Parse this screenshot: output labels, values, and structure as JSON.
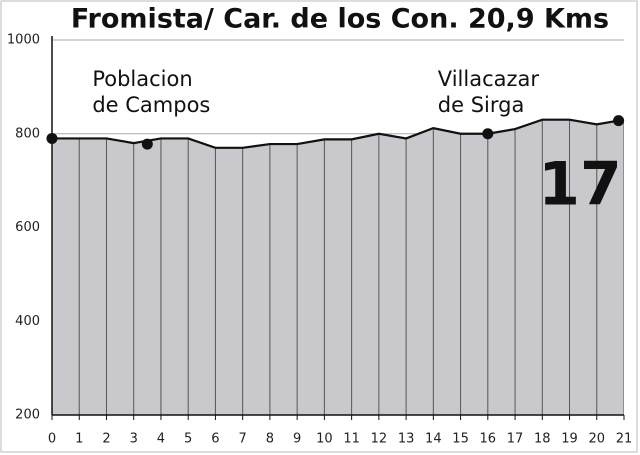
{
  "chart_data": {
    "type": "area",
    "title": "Fromista/ Car. de los Con. 20,9 Kms",
    "stage": "17",
    "x": [
      0,
      1,
      2,
      3,
      4,
      5,
      6,
      7,
      8,
      9,
      10,
      11,
      12,
      13,
      14,
      15,
      16,
      17,
      18,
      19,
      20,
      21
    ],
    "values": [
      790,
      790,
      790,
      780,
      790,
      790,
      770,
      770,
      778,
      778,
      788,
      788,
      800,
      790,
      812,
      800,
      800,
      810,
      830,
      830,
      820,
      830
    ],
    "color": "#c9c9cd",
    "xlim": [
      0,
      21
    ],
    "xticks": [
      0,
      1,
      2,
      3,
      4,
      5,
      6,
      7,
      8,
      9,
      10,
      11,
      12,
      13,
      14,
      15,
      16,
      17,
      18,
      19,
      20,
      21
    ],
    "ylim": [
      200,
      1000
    ],
    "yticks": [
      200,
      400,
      600,
      800,
      1000
    ],
    "grid": true,
    "markers": {
      "x": [
        0,
        3.5,
        16,
        20.8
      ],
      "y": [
        790,
        778,
        800,
        828
      ]
    },
    "annotations": [
      {
        "lines": [
          "Poblacion",
          "de Campos"
        ],
        "x": 3.5
      },
      {
        "lines": [
          "Villacazar",
          "de Sirga"
        ],
        "x": 16
      }
    ]
  }
}
